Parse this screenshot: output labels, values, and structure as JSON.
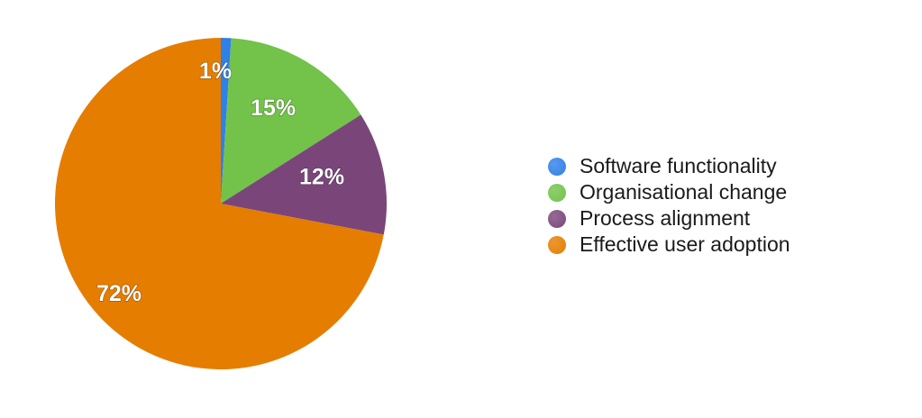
{
  "chart_data": {
    "type": "pie",
    "title": "",
    "legend_position": "right",
    "series": [
      {
        "name": "",
        "values": [
          1,
          15,
          12,
          72
        ]
      }
    ],
    "slices": [
      {
        "label": "Software functionality",
        "value": 1,
        "display": "1%",
        "color": "#2f80e8"
      },
      {
        "label": "Organisational change",
        "value": 15,
        "display": "15%",
        "color": "#73c24a"
      },
      {
        "label": "Process alignment",
        "value": 12,
        "display": "12%",
        "color": "#7a467a"
      },
      {
        "label": "Effective user adoption",
        "value": 72,
        "display": "72%",
        "color": "#e57d00"
      }
    ]
  }
}
